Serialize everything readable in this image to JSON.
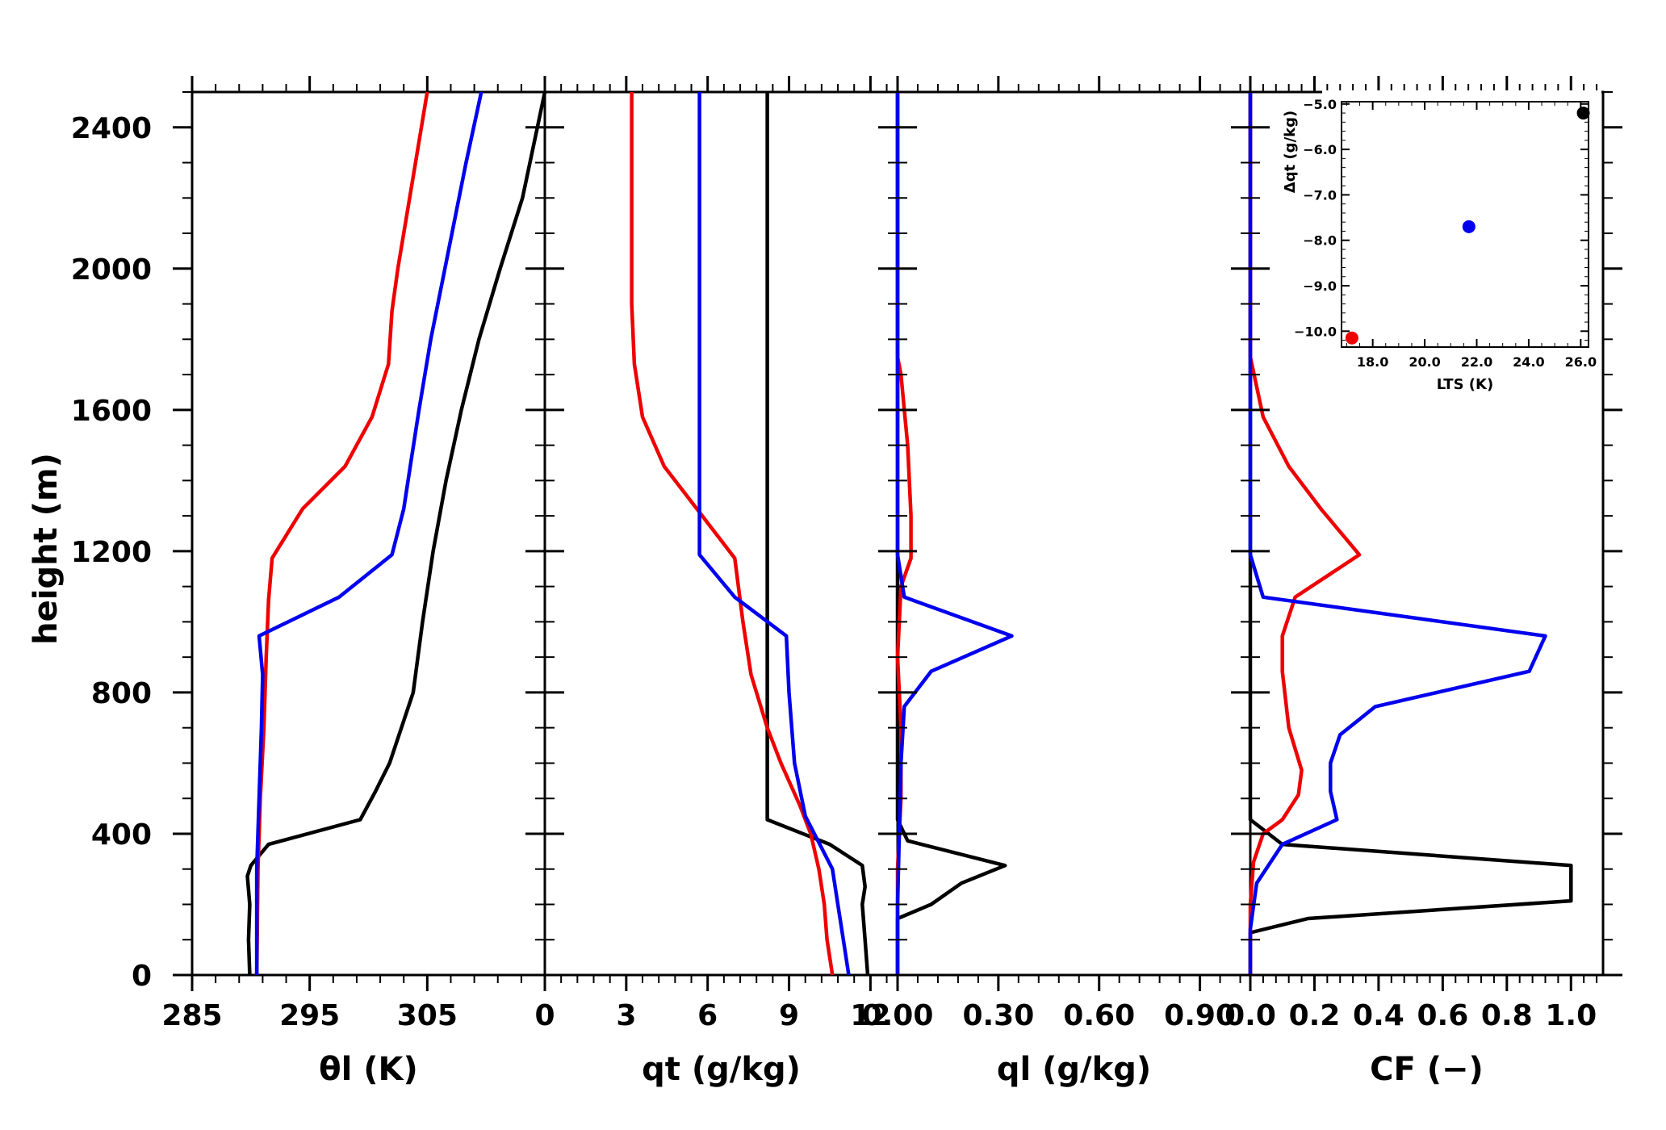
{
  "chart_data": {
    "type": "line",
    "ylabel": "height (m)",
    "ylim": [
      0,
      2500
    ],
    "yticks": [
      0,
      400,
      800,
      1200,
      1600,
      2000,
      2400
    ],
    "series_colors": [
      "#000000",
      "#ee0000",
      "#0000ee"
    ],
    "panels": [
      {
        "xlabel": "θl (K)",
        "xlim": [
          285,
          315
        ],
        "xtick_values": [
          285,
          295,
          305
        ],
        "xtick_labels": [
          "285",
          "295",
          "305"
        ],
        "series": [
          {
            "color": "#000000",
            "points": [
              [
                289.9,
                0
              ],
              [
                289.8,
                100
              ],
              [
                289.9,
                200
              ],
              [
                289.7,
                280
              ],
              [
                290.0,
                310
              ],
              [
                291.5,
                370
              ],
              [
                299.3,
                440
              ],
              [
                300.6,
                520
              ],
              [
                301.8,
                600
              ],
              [
                302.8,
                700
              ],
              [
                303.8,
                800
              ],
              [
                304.6,
                1000
              ],
              [
                305.5,
                1200
              ],
              [
                306.6,
                1400
              ],
              [
                307.9,
                1600
              ],
              [
                309.4,
                1800
              ],
              [
                311.2,
                2000
              ],
              [
                313.1,
                2200
              ],
              [
                315.0,
                2500
              ]
            ]
          },
          {
            "color": "#ee0000",
            "points": [
              [
                290.5,
                0
              ],
              [
                290.6,
                300
              ],
              [
                290.8,
                500
              ],
              [
                291.1,
                700
              ],
              [
                291.3,
                900
              ],
              [
                291.5,
                1060
              ],
              [
                291.8,
                1180
              ],
              [
                294.4,
                1320
              ],
              [
                298.0,
                1440
              ],
              [
                300.3,
                1580
              ],
              [
                301.7,
                1730
              ],
              [
                302.0,
                1880
              ],
              [
                302.5,
                2000
              ],
              [
                304.0,
                2300
              ],
              [
                305.0,
                2500
              ]
            ]
          },
          {
            "color": "#0000ee",
            "points": [
              [
                290.5,
                0
              ],
              [
                290.5,
                300
              ],
              [
                290.7,
                500
              ],
              [
                290.9,
                700
              ],
              [
                291.0,
                850
              ],
              [
                290.7,
                960
              ],
              [
                297.5,
                1070
              ],
              [
                300.5,
                1150
              ],
              [
                302.0,
                1190
              ],
              [
                303.0,
                1320
              ],
              [
                303.6,
                1450
              ],
              [
                304.3,
                1600
              ],
              [
                305.3,
                1800
              ],
              [
                306.5,
                2000
              ],
              [
                308.3,
                2300
              ],
              [
                309.6,
                2500
              ]
            ]
          }
        ]
      },
      {
        "xlabel": "qt (g/kg)",
        "xlim": [
          0,
          13
        ],
        "xtick_values": [
          0,
          3,
          6,
          9,
          12
        ],
        "xtick_labels": [
          "0",
          "3",
          "6",
          "9",
          "12"
        ],
        "series": [
          {
            "color": "#000000",
            "points": [
              [
                11.9,
                0
              ],
              [
                11.8,
                100
              ],
              [
                11.7,
                200
              ],
              [
                11.8,
                250
              ],
              [
                11.7,
                310
              ],
              [
                10.5,
                370
              ],
              [
                8.2,
                440
              ],
              [
                8.2,
                1000
              ],
              [
                8.2,
                2500
              ]
            ]
          },
          {
            "color": "#ee0000",
            "points": [
              [
                10.6,
                0
              ],
              [
                10.4,
                100
              ],
              [
                10.3,
                200
              ],
              [
                10.1,
                300
              ],
              [
                9.8,
                400
              ],
              [
                9.4,
                480
              ],
              [
                8.7,
                600
              ],
              [
                8.2,
                700
              ],
              [
                7.6,
                850
              ],
              [
                7.3,
                1000
              ],
              [
                7.0,
                1180
              ],
              [
                5.8,
                1300
              ],
              [
                4.4,
                1440
              ],
              [
                3.6,
                1580
              ],
              [
                3.3,
                1730
              ],
              [
                3.2,
                1900
              ],
              [
                3.2,
                2500
              ]
            ]
          },
          {
            "color": "#0000ee",
            "points": [
              [
                11.2,
                0
              ],
              [
                11.0,
                100
              ],
              [
                10.8,
                200
              ],
              [
                10.6,
                300
              ],
              [
                9.6,
                450
              ],
              [
                9.2,
                600
              ],
              [
                9.0,
                800
              ],
              [
                8.9,
                960
              ],
              [
                7.0,
                1070
              ],
              [
                5.7,
                1190
              ],
              [
                5.7,
                1500
              ],
              [
                5.7,
                2000
              ],
              [
                5.7,
                2500
              ]
            ]
          }
        ]
      },
      {
        "xlabel": "ql (g/kg)",
        "xlim": [
          0,
          1.05
        ],
        "xtick_values": [
          0.0,
          0.3,
          0.6,
          0.9
        ],
        "xtick_labels": [
          "0.00",
          "0.30",
          "0.60",
          "0.90"
        ],
        "series": [
          {
            "color": "#000000",
            "points": [
              [
                0.0,
                0
              ],
              [
                0.0,
                160
              ],
              [
                0.1,
                200
              ],
              [
                0.19,
                260
              ],
              [
                0.32,
                310
              ],
              [
                0.03,
                380
              ],
              [
                0.0,
                440
              ],
              [
                0.0,
                2500
              ]
            ]
          },
          {
            "color": "#ee0000",
            "points": [
              [
                0.0,
                0
              ],
              [
                0.0,
                300
              ],
              [
                0.01,
                500
              ],
              [
                0.01,
                700
              ],
              [
                0.0,
                900
              ],
              [
                0.01,
                1100
              ],
              [
                0.04,
                1180
              ],
              [
                0.04,
                1300
              ],
              [
                0.03,
                1500
              ],
              [
                0.01,
                1700
              ],
              [
                0.0,
                1750
              ],
              [
                0.0,
                2500
              ]
            ]
          },
          {
            "color": "#0000ee",
            "points": [
              [
                0.0,
                0
              ],
              [
                0.0,
                200
              ],
              [
                0.01,
                600
              ],
              [
                0.02,
                760
              ],
              [
                0.1,
                860
              ],
              [
                0.34,
                960
              ],
              [
                0.02,
                1070
              ],
              [
                0.0,
                1190
              ],
              [
                0.0,
                2500
              ]
            ]
          }
        ]
      },
      {
        "xlabel": "CF (−)",
        "xlim": [
          0,
          1.1
        ],
        "xtick_values": [
          0.0,
          0.2,
          0.4,
          0.6,
          0.8,
          1.0
        ],
        "xtick_labels": [
          "0.0",
          "0.2",
          "0.4",
          "0.6",
          "0.8",
          "1.0"
        ],
        "series": [
          {
            "color": "#000000",
            "points": [
              [
                0.0,
                0
              ],
              [
                0.0,
                120
              ],
              [
                0.18,
                160
              ],
              [
                1.0,
                210
              ],
              [
                1.0,
                310
              ],
              [
                0.1,
                370
              ],
              [
                0.0,
                440
              ],
              [
                0.0,
                2500
              ]
            ]
          },
          {
            "color": "#ee0000",
            "points": [
              [
                0.0,
                0
              ],
              [
                0.0,
                200
              ],
              [
                0.01,
                320
              ],
              [
                0.04,
                400
              ],
              [
                0.1,
                440
              ],
              [
                0.15,
                510
              ],
              [
                0.16,
                580
              ],
              [
                0.12,
                700
              ],
              [
                0.1,
                860
              ],
              [
                0.1,
                960
              ],
              [
                0.14,
                1070
              ],
              [
                0.34,
                1190
              ],
              [
                0.22,
                1320
              ],
              [
                0.12,
                1440
              ],
              [
                0.04,
                1580
              ],
              [
                0.0,
                1750
              ],
              [
                0.0,
                2500
              ]
            ]
          },
          {
            "color": "#0000ee",
            "points": [
              [
                0.0,
                0
              ],
              [
                0.0,
                130
              ],
              [
                0.02,
                260
              ],
              [
                0.1,
                370
              ],
              [
                0.27,
                440
              ],
              [
                0.25,
                520
              ],
              [
                0.25,
                600
              ],
              [
                0.28,
                680
              ],
              [
                0.39,
                760
              ],
              [
                0.87,
                860
              ],
              [
                0.92,
                960
              ],
              [
                0.04,
                1070
              ],
              [
                0.0,
                1190
              ],
              [
                0.0,
                2500
              ]
            ]
          }
        ]
      }
    ],
    "inset": {
      "type": "scatter",
      "xlabel": "LTS (K)",
      "ylabel": "Δqt (g/kg)",
      "xlim": [
        16.8,
        26.3
      ],
      "ylim": [
        -10.35,
        -4.95
      ],
      "xtick_values": [
        18.0,
        20.0,
        22.0,
        24.0,
        26.0
      ],
      "xtick_labels": [
        "18.0",
        "20.0",
        "22.0",
        "24.0",
        "26.0"
      ],
      "ytick_values": [
        -5.0,
        -6.0,
        -7.0,
        -8.0,
        -9.0,
        -10.0
      ],
      "ytick_labels": [
        "−5.0",
        "−6.0",
        "−7.0",
        "−8.0",
        "−9.0",
        "−10.0"
      ],
      "points": [
        {
          "x": 26.1,
          "y": -5.2,
          "color": "#000000"
        },
        {
          "x": 21.7,
          "y": -7.7,
          "color": "#0000ee"
        },
        {
          "x": 17.2,
          "y": -10.15,
          "color": "#ee0000"
        }
      ]
    }
  }
}
